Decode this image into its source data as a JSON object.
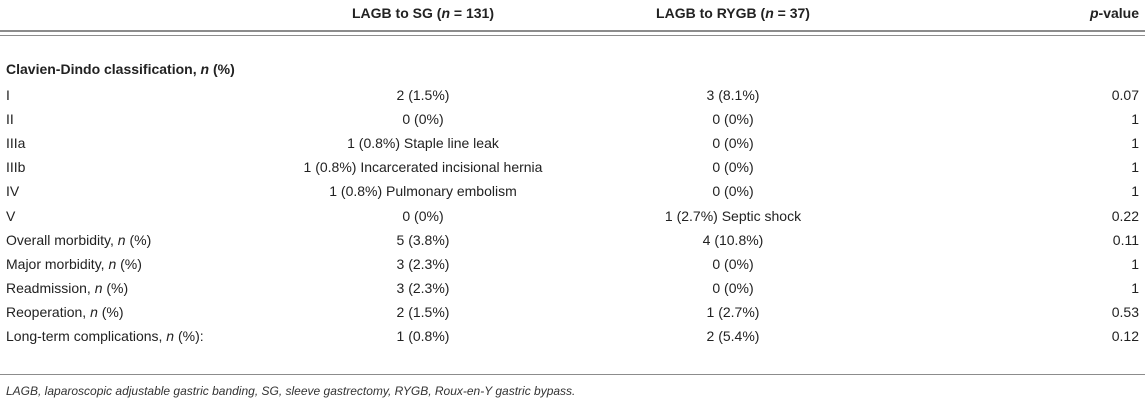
{
  "header": {
    "col1_pre": "LAGB to SG (",
    "col1_n": "n",
    "col1_post": " = 131)",
    "col2_pre": "LAGB to RYGB (",
    "col2_n": "n",
    "col2_post": " = 37)",
    "col3_p": "p",
    "col3_post": "-value"
  },
  "section": {
    "label": "Clavien-Dindo classification, ",
    "n": "n",
    "unit": " (%)"
  },
  "rows": [
    {
      "label": "I",
      "n_label": "",
      "label_suffix": "",
      "sg": "2 (1.5%)",
      "rygb": "3 (8.1%)",
      "p": "0.07"
    },
    {
      "label": "II",
      "n_label": "",
      "label_suffix": "",
      "sg": "0 (0%)",
      "rygb": "0 (0%)",
      "p": "1"
    },
    {
      "label": "IIIa",
      "n_label": "",
      "label_suffix": "",
      "sg": "1 (0.8%) Staple line leak",
      "rygb": "0 (0%)",
      "p": "1"
    },
    {
      "label": "IIIb",
      "n_label": "",
      "label_suffix": "",
      "sg": "1 (0.8%) Incarcerated incisional hernia",
      "rygb": "0 (0%)",
      "p": "1"
    },
    {
      "label": "IV",
      "n_label": "",
      "label_suffix": "",
      "sg": "1 (0.8%) Pulmonary embolism",
      "rygb": "0 (0%)",
      "p": "1"
    },
    {
      "label": "V",
      "n_label": "",
      "label_suffix": "",
      "sg": "0 (0%)",
      "rygb": "1 (2.7%) Septic shock",
      "p": "0.22"
    },
    {
      "label": "Overall morbidity, ",
      "n_label": "n",
      "label_suffix": " (%)",
      "sg": "5 (3.8%)",
      "rygb": "4 (10.8%)",
      "p": "0.11"
    },
    {
      "label": "Major morbidity, ",
      "n_label": "n",
      "label_suffix": " (%)",
      "sg": "3 (2.3%)",
      "rygb": "0 (0%)",
      "p": "1"
    },
    {
      "label": "Readmission, ",
      "n_label": "n",
      "label_suffix": " (%)",
      "sg": "3 (2.3%)",
      "rygb": "0 (0%)",
      "p": "1"
    },
    {
      "label": "Reoperation, ",
      "n_label": "n",
      "label_suffix": " (%)",
      "sg": "2 (1.5%)",
      "rygb": "1 (2.7%)",
      "p": "0.53"
    },
    {
      "label": "Long-term complications, ",
      "n_label": "n",
      "label_suffix": " (%):",
      "sg": "1 (0.8%)",
      "rygb": "2 (5.4%)",
      "p": "0.12"
    }
  ],
  "footnote": "LAGB, laparoscopic adjustable gastric banding, SG, sleeve gastrectomy, RYGB, Roux-en-Y gastric bypass."
}
